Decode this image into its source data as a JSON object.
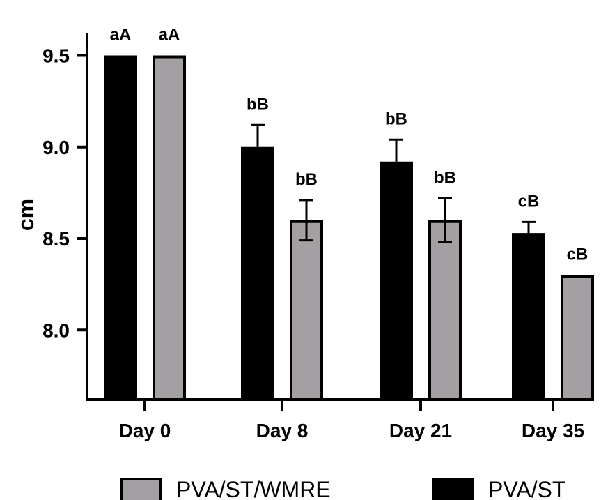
{
  "chart_data": {
    "type": "bar",
    "title": "",
    "xlabel": "",
    "ylabel": "cm",
    "ylim": [
      7.62,
      9.62
    ],
    "yticks": [
      "8.0",
      "8.5",
      "9.0",
      "9.5"
    ],
    "categories": [
      "Day 0",
      "Day 8",
      "Day 21",
      "Day 35"
    ],
    "series": [
      {
        "name": "PVA/ST",
        "color": "#000000",
        "values": [
          9.5,
          9.0,
          8.92,
          8.53
        ],
        "errors": [
          0,
          0.12,
          0.12,
          0.06
        ],
        "labels": [
          "aA",
          "bB",
          "bB",
          "cB"
        ]
      },
      {
        "name": "PVA/ST/WMRE",
        "color": "#a39fa3",
        "values": [
          9.5,
          8.6,
          8.6,
          8.3
        ],
        "errors": [
          0,
          0.11,
          0.12,
          0
        ],
        "labels": [
          "aA",
          "bB",
          "bB",
          "cB"
        ]
      }
    ],
    "legend": {
      "position": "bottom",
      "order": [
        "PVA/ST/WMRE",
        "PVA/ST"
      ]
    },
    "grid": false
  }
}
